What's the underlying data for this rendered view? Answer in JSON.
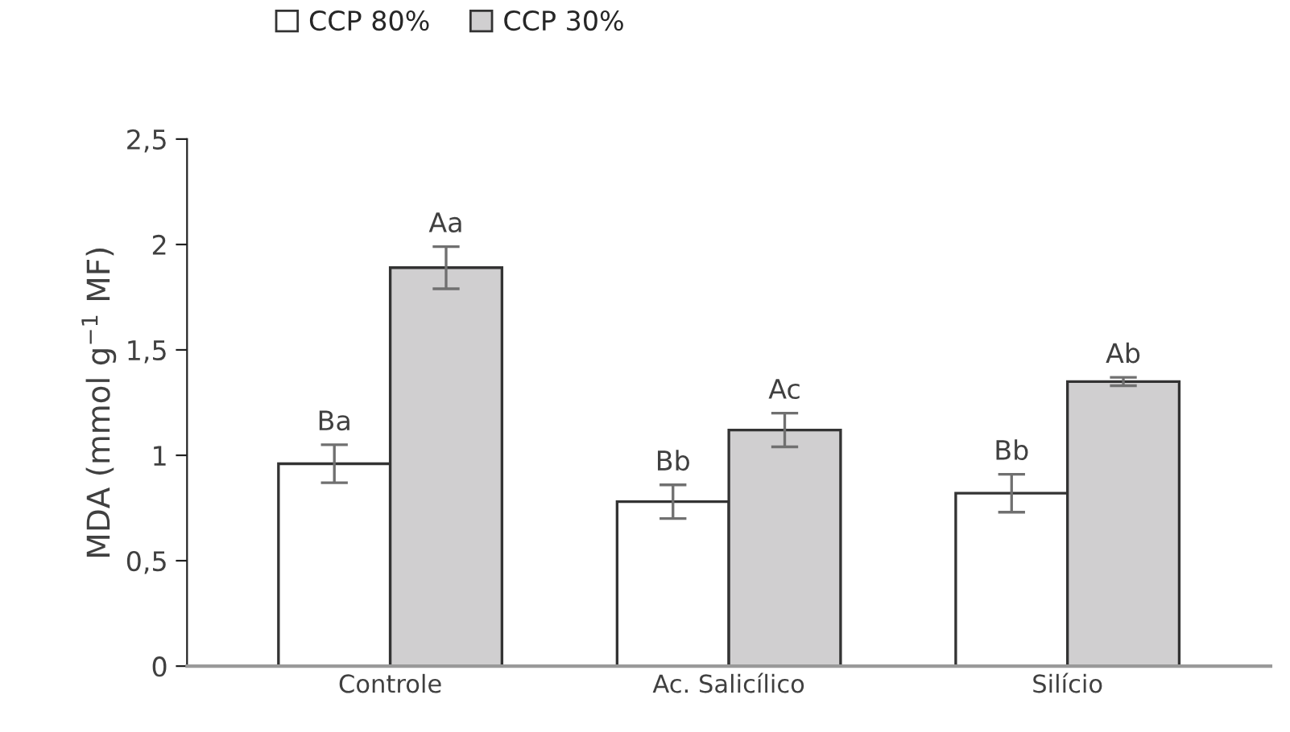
{
  "chart_data": {
    "type": "bar",
    "ylabel": "MDA (mmol g$^{−1}$ MF)",
    "categories": [
      "Controle",
      "Ac. Salicílico",
      "Silício"
    ],
    "series": [
      {
        "name": "CCP 80%",
        "color": "#ffffff",
        "values": [
          0.96,
          0.78,
          0.82
        ],
        "errors": [
          0.09,
          0.08,
          0.09
        ],
        "value_labels": [
          "Ba",
          "Bb",
          "Bb"
        ]
      },
      {
        "name": "CCP 30%",
        "color": "#d0cfd0",
        "values": [
          1.89,
          1.12,
          1.35
        ],
        "errors": [
          0.1,
          0.08,
          0.02
        ],
        "value_labels": [
          "Aa",
          "Ac",
          "Ab"
        ]
      }
    ],
    "ylim": [
      0,
      2.5
    ],
    "yticks": [
      0,
      {
        "value": 0.5,
        "label": "0,5"
      },
      1,
      {
        "value": 1.5,
        "label": "1,5"
      },
      2,
      {
        "value": 2.5,
        "label": "2,5"
      }
    ],
    "grid": false,
    "legend": "top"
  }
}
